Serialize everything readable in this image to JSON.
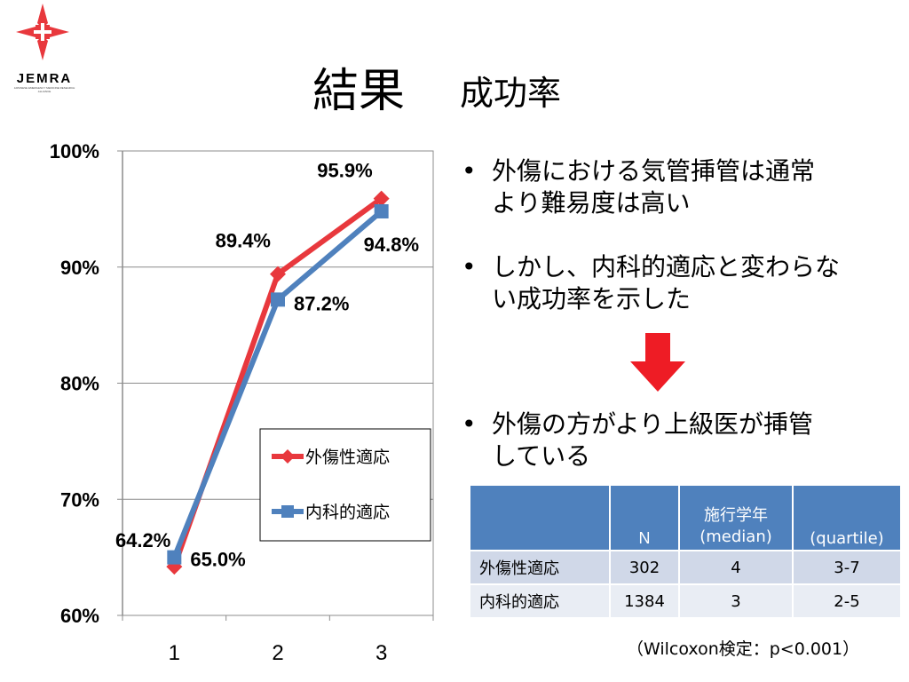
{
  "logo": {
    "text": "JEMRA",
    "subtext": "JAPANESE EMERGENCY MEDICINE RESEARCH ALLIANCE"
  },
  "title": {
    "main": "結果",
    "sub": "成功率"
  },
  "colors": {
    "trauma": "#e8383d",
    "internal": "#4f81bd",
    "arrow": "#ee1c25",
    "table_header": "#4f81bd"
  },
  "chart_data": {
    "type": "line",
    "categories": [
      "1",
      "2",
      "3"
    ],
    "ylim": [
      0.6,
      1.0
    ],
    "yticks": [
      0.6,
      0.7,
      0.8,
      0.9,
      1.0
    ],
    "ytick_labels": [
      "60%",
      "70%",
      "80%",
      "90%",
      "100%"
    ],
    "grid": true,
    "legend_position": "center-right",
    "series": [
      {
        "name": "外傷性適応",
        "values": [
          0.642,
          0.894,
          0.959
        ],
        "labels": [
          "64.2%",
          "89.4%",
          "95.9%"
        ],
        "marker": "diamond",
        "color": "#e8383d"
      },
      {
        "name": "内科的適応",
        "values": [
          0.65,
          0.872,
          0.948
        ],
        "labels": [
          "65.0%",
          "87.2%",
          "94.8%"
        ],
        "marker": "square",
        "color": "#4f81bd"
      }
    ]
  },
  "bullets": [
    {
      "symbol": "•",
      "lines": [
        "外傷における気管挿管は通常",
        "より難易度は高い"
      ]
    },
    {
      "symbol": "•",
      "lines": [
        "しかし、内科的適応と変わらな",
        "い成功率を示した"
      ]
    },
    {
      "symbol": "•",
      "lines": [
        "外傷の方がより上級医が挿管",
        "している"
      ]
    }
  ],
  "table": {
    "headers": [
      "",
      "N",
      "施行学年\n(median)",
      "(quartile)"
    ],
    "rows": [
      [
        "外傷性適応",
        "302",
        "4",
        "3-7"
      ],
      [
        "内科的適応",
        "1384",
        "3",
        "2-5"
      ]
    ]
  },
  "note": "（Wilcoxon検定：p<0.001）"
}
